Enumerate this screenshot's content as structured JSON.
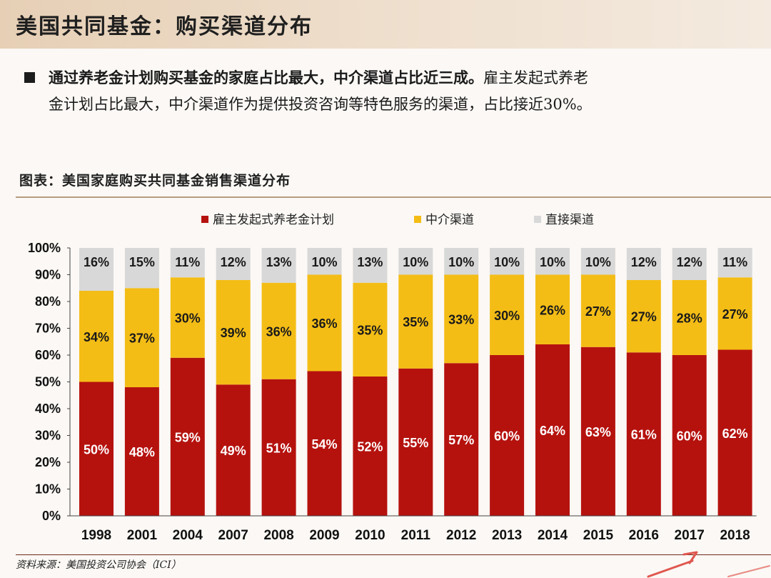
{
  "header": {
    "title": "美国共同基金：购买渠道分布"
  },
  "bullet": {
    "line1_bold": "通过养老金计划购买基金的家庭占比最大，中介渠道占比近三成。",
    "line1_rest": "雇主发起式养老",
    "line2": "金计划占比最大，中介渠道作为提供投资咨询等特色服务的渠道，占比接近30%。"
  },
  "chart_title": "图表：美国家庭购买共同基金销售渠道分布",
  "source": "资料来源：美国投资公司协会（ICI）",
  "chart_data": {
    "type": "bar",
    "stacked": true,
    "percent_scale": true,
    "categories": [
      "1998",
      "2001",
      "2004",
      "2007",
      "2008",
      "2009",
      "2010",
      "2011",
      "2012",
      "2013",
      "2014",
      "2015",
      "2016",
      "2017",
      "2018"
    ],
    "series": [
      {
        "name": "雇主发起式养老金计划",
        "color": "#b5120e",
        "values": [
          50,
          48,
          59,
          49,
          51,
          54,
          52,
          55,
          57,
          60,
          64,
          63,
          61,
          60,
          62
        ]
      },
      {
        "name": "中介渠道",
        "color": "#f4bd16",
        "values": [
          34,
          37,
          30,
          39,
          36,
          36,
          35,
          35,
          33,
          30,
          26,
          27,
          27,
          28,
          27
        ]
      },
      {
        "name": "直接渠道",
        "color": "#d8d8d8",
        "values": [
          16,
          15,
          11,
          12,
          13,
          10,
          13,
          10,
          10,
          10,
          10,
          10,
          12,
          12,
          11
        ]
      }
    ],
    "ylim": [
      0,
      100
    ],
    "yticks": [
      "0%",
      "10%",
      "20%",
      "30%",
      "40%",
      "50%",
      "60%",
      "70%",
      "80%",
      "90%",
      "100%"
    ],
    "legend_position": "top-center",
    "xlabel": "",
    "ylabel": "",
    "data_labels": true,
    "grid": false
  }
}
